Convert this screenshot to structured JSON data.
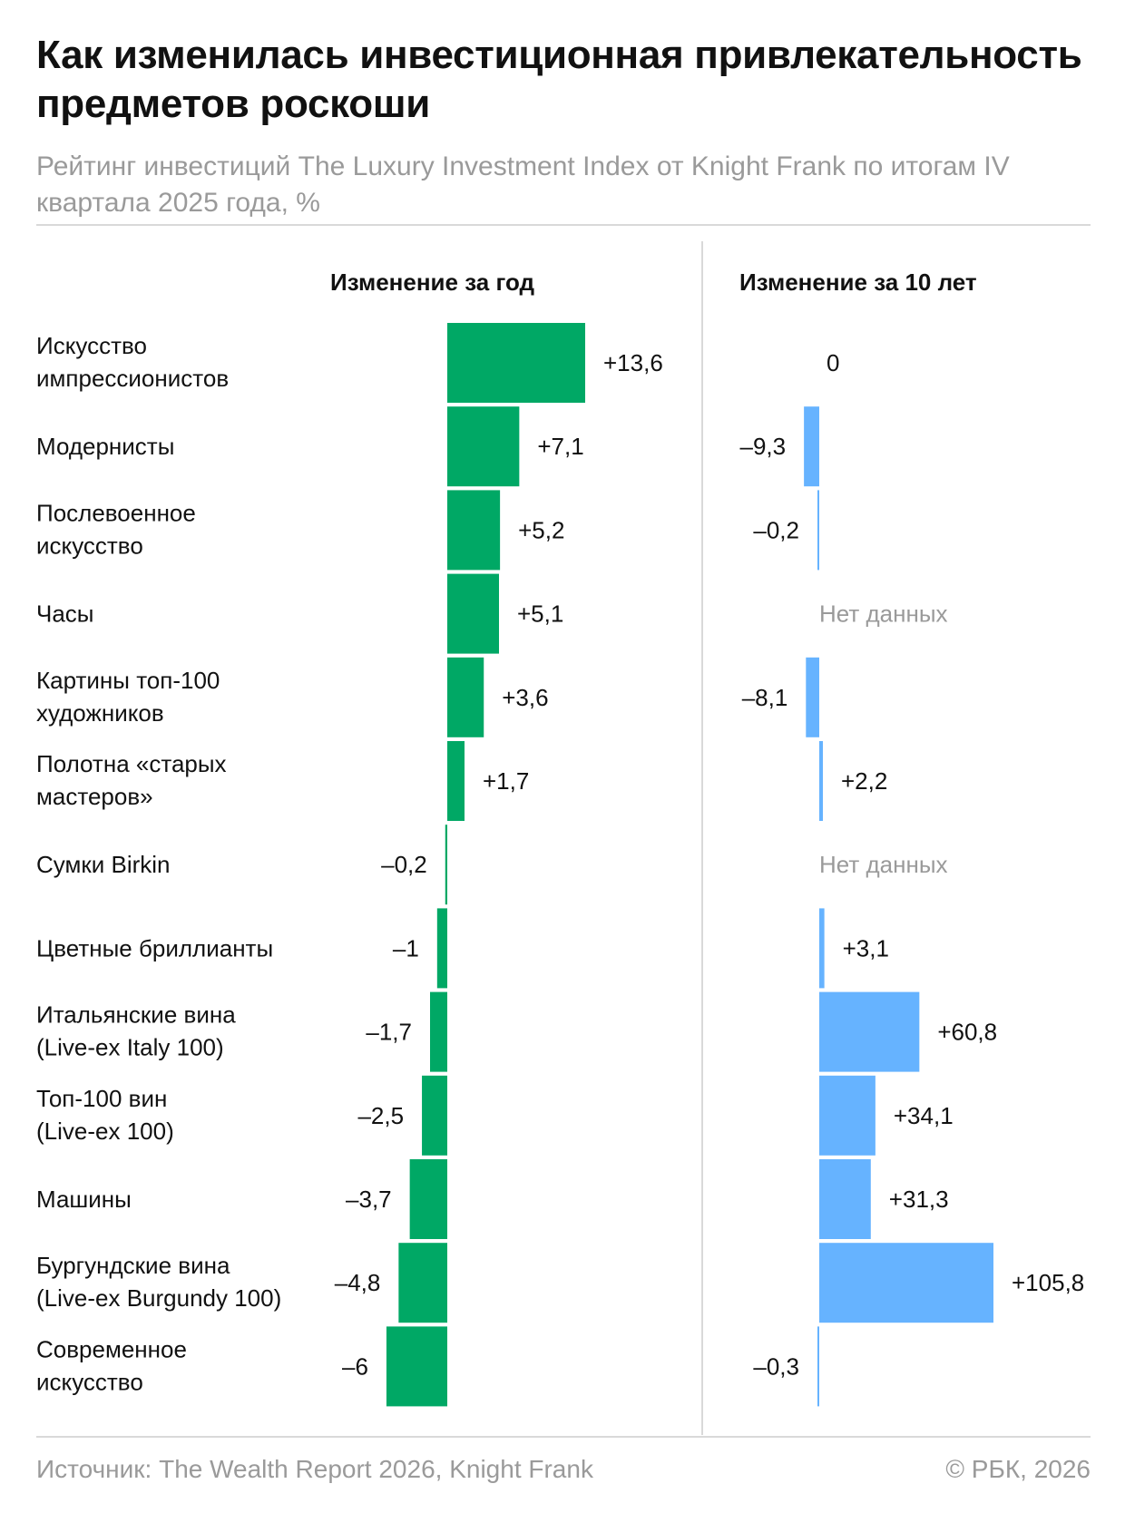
{
  "title": "Как изменилась инвестиционная привлекательность предметов роскоши",
  "subtitle": "Рейтинг инвестиций The Luxury Investment Index от Knight Frank по итогам IV квартала 2025 года, %",
  "source": "Источник: The Wealth Report 2026, Knight Frank",
  "copyright": "© РБК, 2026",
  "no_data_label": "Нет данных",
  "colors": {
    "year_bar": "#00a865",
    "decade_bar": "#66b3ff",
    "muted_text": "#9a9a9a",
    "divider": "#d9d9d9"
  },
  "chart_data": [
    {
      "type": "bar",
      "orientation": "horizontal",
      "title": "Изменение за год",
      "categories": [
        "Искусство импрессионистов",
        "Модернисты",
        "Послевоенное искусство",
        "Часы",
        "Картины топ-100 художников",
        "Полотна «старых мастеров»",
        "Сумки Birkin",
        "Цветные бриллианты",
        "Итальянские вина (Live-ex Italy 100)",
        "Топ-100 вин (Live-ex 100)",
        "Машины",
        "Бургундские вина (Live-ex Burgundy 100)",
        "Современное искусство"
      ],
      "category_lines": [
        [
          "Искусство",
          "импрессионистов"
        ],
        [
          "Модернисты"
        ],
        [
          "Послевоенное",
          "искусство"
        ],
        [
          "Часы"
        ],
        [
          "Картины топ-100",
          "художников"
        ],
        [
          "Полотна «старых",
          "мастеров»"
        ],
        [
          "Сумки Birkin"
        ],
        [
          "Цветные бриллианты"
        ],
        [
          "Итальянские вина",
          "(Live-ex Italy 100)"
        ],
        [
          "Топ-100 вин",
          "(Live-ex 100)"
        ],
        [
          "Машины"
        ],
        [
          "Бургундские вина",
          "(Live-ex Burgundy 100)"
        ],
        [
          "Современное",
          "искусство"
        ]
      ],
      "values": [
        13.6,
        7.1,
        5.2,
        5.1,
        3.6,
        1.7,
        -0.2,
        -1,
        -1.7,
        -2.5,
        -3.7,
        -4.8,
        -6
      ],
      "value_labels": [
        "+13,6",
        "+7,1",
        "+5,2",
        "+5,1",
        "+3,6",
        "+1,7",
        "–0,2",
        "–1",
        "–1,7",
        "–2,5",
        "–3,7",
        "–4,8",
        "–6"
      ],
      "color": "#00a865"
    },
    {
      "type": "bar",
      "orientation": "horizontal",
      "title": "Изменение за 10 лет",
      "categories": [
        "Искусство импрессионистов",
        "Модернисты",
        "Послевоенное искусство",
        "Часы",
        "Картины топ-100 художников",
        "Полотна «старых мастеров»",
        "Сумки Birkin",
        "Цветные бриллианты",
        "Итальянские вина (Live-ex Italy 100)",
        "Топ-100 вин (Live-ex 100)",
        "Машины",
        "Бургундские вина (Live-ex Burgundy 100)",
        "Современное искусство"
      ],
      "values": [
        0,
        -9.3,
        -0.2,
        null,
        -8.1,
        2.2,
        null,
        3.1,
        60.8,
        34.1,
        31.3,
        105.8,
        -0.3
      ],
      "value_labels": [
        "0",
        "–9,3",
        "–0,2",
        "Нет данных",
        "–8,1",
        "+2,2",
        "Нет данных",
        "+3,1",
        "+60,8",
        "+34,1",
        "+31,3",
        "+105,8",
        "–0,3"
      ],
      "color": "#66b3ff"
    }
  ]
}
